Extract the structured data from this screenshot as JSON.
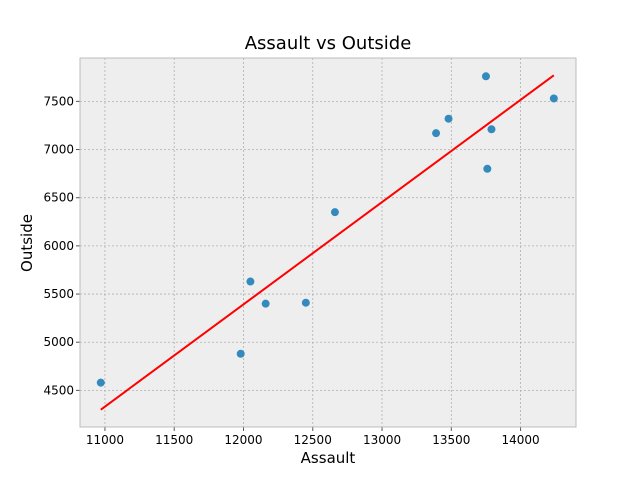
{
  "chart_data": {
    "type": "scatter",
    "title": "Assault vs Outside",
    "xlabel": "Assault",
    "ylabel": "Outside",
    "xlim": [
      10820,
      14400
    ],
    "ylim": [
      4120,
      7950
    ],
    "xticks": [
      11000,
      11500,
      12000,
      12500,
      13000,
      13500,
      14000
    ],
    "yticks": [
      4500,
      5000,
      5500,
      6000,
      6500,
      7000,
      7500
    ],
    "grid": true,
    "colors": {
      "points": "#348abd",
      "fit": "#ff0000",
      "plot_bg": "#eeeeee",
      "grid": "#b0b0b0",
      "frame": "#bcbcbc"
    },
    "points": [
      {
        "x": 10970,
        "y": 4580
      },
      {
        "x": 11980,
        "y": 4880
      },
      {
        "x": 12050,
        "y": 5630
      },
      {
        "x": 12160,
        "y": 5400
      },
      {
        "x": 12450,
        "y": 5410
      },
      {
        "x": 12660,
        "y": 6350
      },
      {
        "x": 13390,
        "y": 7170
      },
      {
        "x": 13480,
        "y": 7320
      },
      {
        "x": 13750,
        "y": 7760
      },
      {
        "x": 13760,
        "y": 6800
      },
      {
        "x": 13790,
        "y": 7210
      },
      {
        "x": 14240,
        "y": 7530
      }
    ],
    "fit_line": {
      "x": [
        10970,
        14240
      ],
      "y": [
        4300,
        7770
      ]
    }
  }
}
